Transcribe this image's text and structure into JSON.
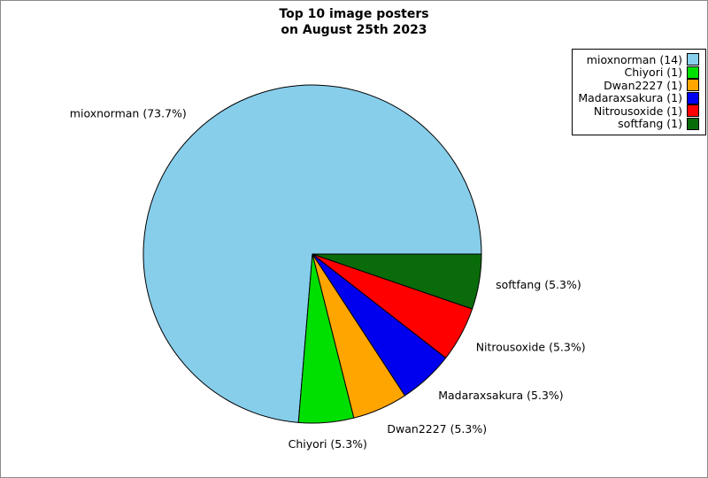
{
  "title": {
    "line1": "Top 10 image posters",
    "line2": "on August 25th 2023"
  },
  "chart_data": {
    "type": "pie",
    "title": "Top 10 image posters on August 25th 2023",
    "total": 19,
    "start_angle_deg": 0,
    "counterclockwise": true,
    "legend_position": "top-right",
    "slices": [
      {
        "name": "mioxnorman",
        "value": 14,
        "pct_text": "73.7%",
        "label": "mioxnorman (73.7%)",
        "legend_label": "mioxnorman (14)",
        "color": "#87CEEB"
      },
      {
        "name": "Chiyori",
        "value": 1,
        "pct_text": "5.3%",
        "label": "Chiyori (5.3%)",
        "legend_label": "Chiyori (1)",
        "color": "#00E000"
      },
      {
        "name": "Dwan2227",
        "value": 1,
        "pct_text": "5.3%",
        "label": "Dwan2227 (5.3%)",
        "legend_label": "Dwan2227 (1)",
        "color": "#FFA500"
      },
      {
        "name": "Madaraxsakura",
        "value": 1,
        "pct_text": "5.3%",
        "label": "Madaraxsakura (5.3%)",
        "legend_label": "Madaraxsakura (1)",
        "color": "#0000EE"
      },
      {
        "name": "Nitrousoxide",
        "value": 1,
        "pct_text": "5.3%",
        "label": "Nitrousoxide (5.3%)",
        "legend_label": "Nitrousoxide (1)",
        "color": "#FF0000"
      },
      {
        "name": "softfang",
        "value": 1,
        "pct_text": "5.3%",
        "label": "softfang (5.3%)",
        "legend_label": "softfang (1)",
        "color": "#0A6B0A"
      }
    ]
  }
}
